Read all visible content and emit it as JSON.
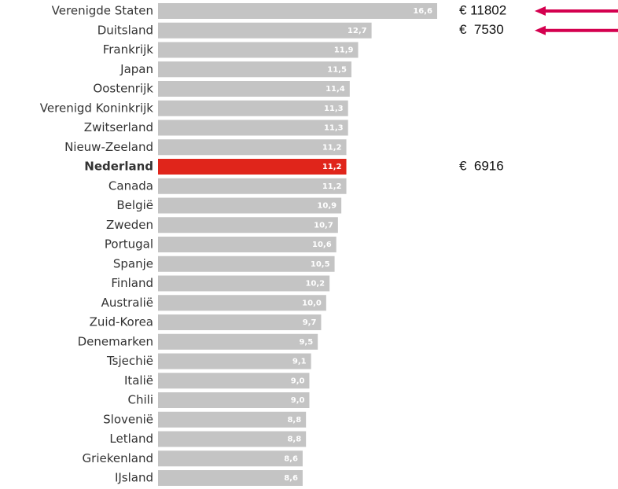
{
  "chart_data": {
    "type": "barh",
    "categories": [
      "Verenigde Staten",
      "Duitsland",
      "Frankrijk",
      "Japan",
      "Oostenrijk",
      "Verenigd Koninkrijk",
      "Zwitserland",
      "Nieuw-Zeeland",
      "Nederland",
      "Canada",
      "België",
      "Zweden",
      "Portugal",
      "Spanje",
      "Finland",
      "Australië",
      "Zuid-Korea",
      "Denemarken",
      "Tsjechië",
      "Italië",
      "Chili",
      "Slovenië",
      "Letland",
      "Griekenland",
      "IJsland"
    ],
    "values": [
      16.6,
      12.7,
      11.9,
      11.5,
      11.4,
      11.3,
      11.3,
      11.2,
      11.2,
      11.2,
      10.9,
      10.7,
      10.6,
      10.5,
      10.2,
      10.0,
      9.7,
      9.5,
      9.1,
      9.0,
      9.0,
      8.8,
      8.8,
      8.6,
      8.6
    ],
    "value_labels": [
      "16,6",
      "12,7",
      "11,9",
      "11,5",
      "11,4",
      "11,3",
      "11,3",
      "11,2",
      "11,2",
      "11,2",
      "10,9",
      "10,7",
      "10,6",
      "10,5",
      "10,2",
      "10,0",
      "9,7",
      "9,5",
      "9,1",
      "9,0",
      "9,0",
      "8,8",
      "8,8",
      "8,6",
      "8,6"
    ],
    "color": "#c4c4c4",
    "highlight_index": 8,
    "highlight_color": "#e0251b",
    "annotations": [
      {
        "text": "€ 11802",
        "row": 0,
        "arrow": true
      },
      {
        "text": "€  7530",
        "row": 1,
        "arrow": true
      },
      {
        "text": "€  6916",
        "row": 8,
        "arrow": false
      }
    ],
    "arrow_color": "#d4004f"
  }
}
